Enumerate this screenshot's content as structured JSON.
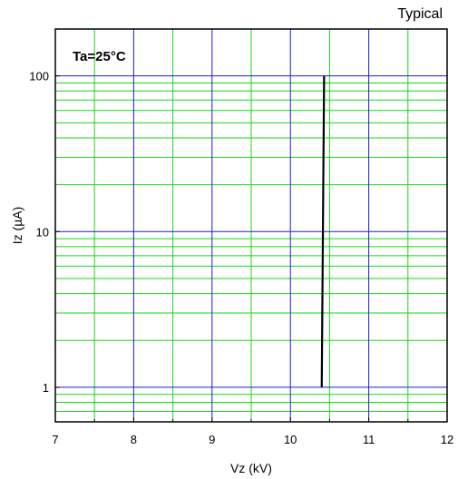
{
  "header": {
    "note": "Typical"
  },
  "chart_data": {
    "type": "line",
    "title": "",
    "annotation": "Ta=25°C",
    "xlabel": "Vz (kV)",
    "ylabel": "Iz (µA)",
    "xlim": [
      7,
      12
    ],
    "ylim": [
      0.6,
      200
    ],
    "yscale": "log",
    "x_ticks": [
      7,
      8,
      9,
      10,
      11,
      12
    ],
    "y_ticks": [
      1,
      10,
      100
    ],
    "x_tick_labels": [
      "7",
      "8",
      "9",
      "10",
      "11",
      "12"
    ],
    "y_tick_labels": [
      "1",
      "10",
      "100"
    ],
    "grid": true,
    "colors": {
      "major_grid": "#1f1fd6",
      "minor_grid": "#19d619",
      "series": "#000000",
      "frame": "#000000"
    },
    "series": [
      {
        "x": [
          10.4,
          10.43
        ],
        "y": [
          1,
          100
        ]
      }
    ]
  }
}
